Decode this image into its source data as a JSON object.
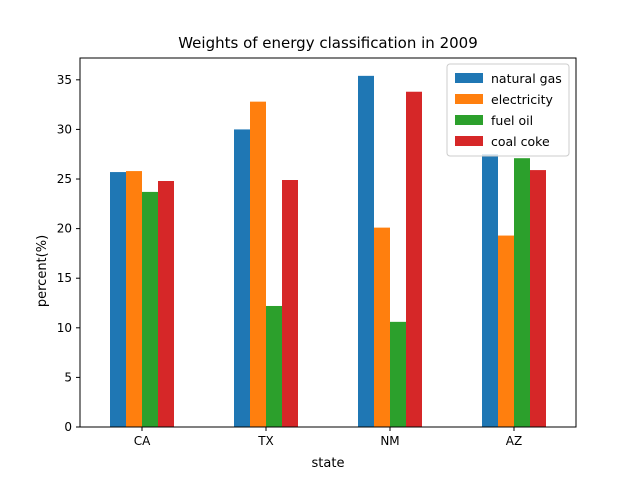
{
  "chart_data": {
    "type": "bar",
    "title": "Weights of energy classification in 2009",
    "xlabel": "state",
    "ylabel": "percent(%)",
    "categories": [
      "CA",
      "TX",
      "NM",
      "AZ"
    ],
    "ylim": [
      0,
      37.2
    ],
    "yticks": [
      0,
      5,
      10,
      15,
      20,
      25,
      30,
      35
    ],
    "series": [
      {
        "name": "natural gas",
        "color": "#1f77b4",
        "values": [
          25.7,
          30.0,
          35.4,
          27.5
        ]
      },
      {
        "name": "electricity",
        "color": "#ff7f0e",
        "values": [
          25.8,
          32.8,
          20.1,
          19.3
        ]
      },
      {
        "name": "fuel oil",
        "color": "#2ca02c",
        "values": [
          23.7,
          12.2,
          10.6,
          27.1
        ]
      },
      {
        "name": "coal coke",
        "color": "#d62728",
        "values": [
          24.8,
          24.9,
          33.8,
          25.9
        ]
      }
    ],
    "legend_position": "top-right",
    "grid": false
  }
}
